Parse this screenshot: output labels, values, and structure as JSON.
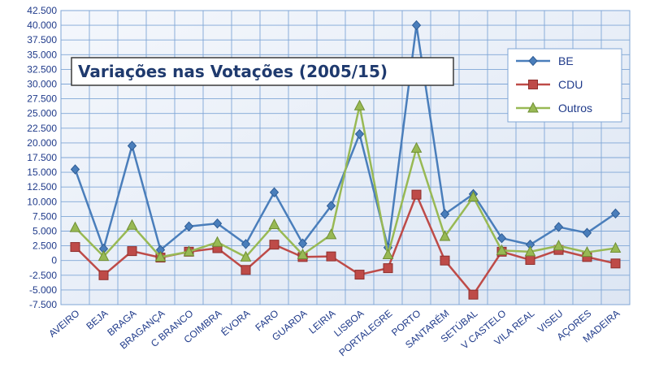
{
  "chart_data": {
    "type": "line",
    "title": "Variações nas Votações (2005/15)",
    "xlabel": "",
    "ylabel": "",
    "ylim": [
      -7500,
      42500
    ],
    "ytick_step": 2500,
    "yticks": [
      "-7.500",
      "-5.000",
      "-2.500",
      "0",
      "2.500",
      "5.000",
      "7.500",
      "10.000",
      "12.500",
      "15.000",
      "17.500",
      "20.000",
      "22.500",
      "25.000",
      "27.500",
      "30.000",
      "32.500",
      "35.000",
      "37.500",
      "40.000",
      "42.500"
    ],
    "grid": true,
    "legend_position": "top-right",
    "categories": [
      "AVEIRO",
      "BEJA",
      "BRAGA",
      "BRAGANÇA",
      "C BRANCO",
      "COIMBRA",
      "ÉVORA",
      "FARO",
      "GUARDA",
      "LEIRIA",
      "LISBOA",
      "PORTALEGRE",
      "PORTO",
      "SANTARÉM",
      "SETÚBAL",
      "V CASTELO",
      "VILA REAL",
      "VISEU",
      "AÇORES",
      "MADEIRA"
    ],
    "series": [
      {
        "name": "BE",
        "color": "#4a7ebb",
        "marker": "diamond",
        "values": [
          15500,
          2000,
          19500,
          1800,
          5800,
          6300,
          2800,
          11600,
          2900,
          9300,
          21500,
          2200,
          40000,
          7900,
          11300,
          3800,
          2700,
          5700,
          4700,
          8000
        ]
      },
      {
        "name": "CDU",
        "color": "#be4b48",
        "marker": "square",
        "values": [
          2300,
          -2500,
          1600,
          500,
          1500,
          2100,
          -1600,
          2700,
          600,
          700,
          -2400,
          -1300,
          11200,
          0,
          -5800,
          1500,
          100,
          1800,
          600,
          -500
        ]
      },
      {
        "name": "Outros",
        "color": "#98b954",
        "marker": "triangle",
        "values": [
          5600,
          700,
          6000,
          600,
          1500,
          3100,
          600,
          6100,
          1000,
          4400,
          26300,
          1000,
          19100,
          4100,
          10800,
          1700,
          1500,
          2500,
          1400,
          2100
        ]
      }
    ]
  },
  "colors": {
    "plot_background": "#e9eff8",
    "gridline": "#7fa6d6",
    "axis_text": "#1f3a8a",
    "title_text": "#1f3a6e"
  }
}
